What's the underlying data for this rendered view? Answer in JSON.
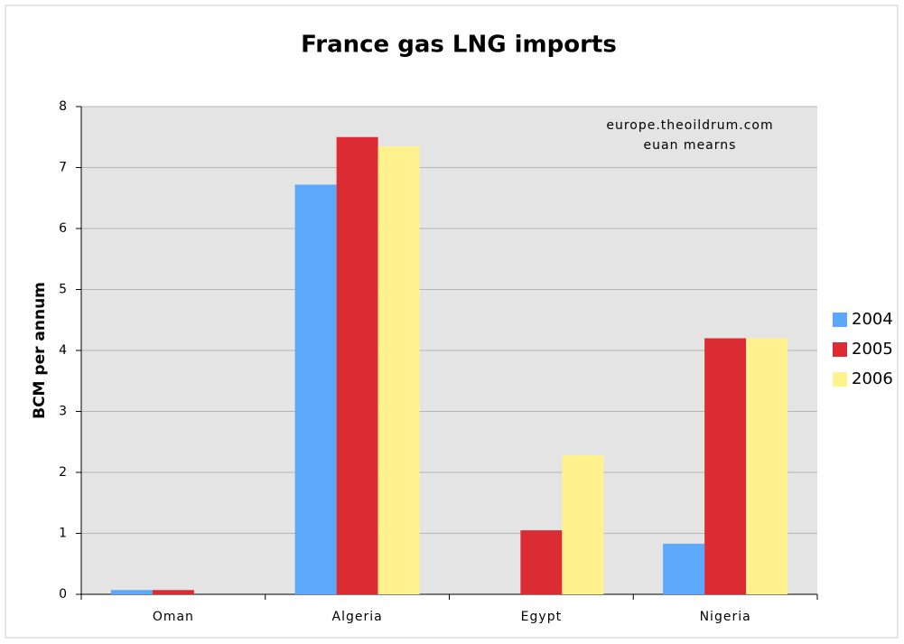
{
  "chart_data": {
    "type": "bar",
    "title": "France gas LNG imports",
    "y_label": "BCM per annum",
    "annotations": [
      "europe.theoildrum.com",
      "euan mearns"
    ],
    "categories": [
      "Oman",
      "Algeria",
      "Egypt",
      "Nigeria"
    ],
    "series": [
      {
        "name": "2004",
        "color": "#5ea8fc",
        "values": [
          0.07,
          6.72,
          0,
          0.83
        ]
      },
      {
        "name": "2005",
        "color": "#dc2c33",
        "values": [
          0.07,
          7.5,
          1.05,
          4.2
        ]
      },
      {
        "name": "2006",
        "color": "#fff18e",
        "values": [
          0,
          7.35,
          2.28,
          4.2
        ]
      }
    ],
    "ylim": [
      0,
      8
    ],
    "yticks": [
      0,
      1,
      2,
      3,
      4,
      5,
      6,
      7,
      8
    ],
    "grid": true,
    "legend": "right"
  }
}
